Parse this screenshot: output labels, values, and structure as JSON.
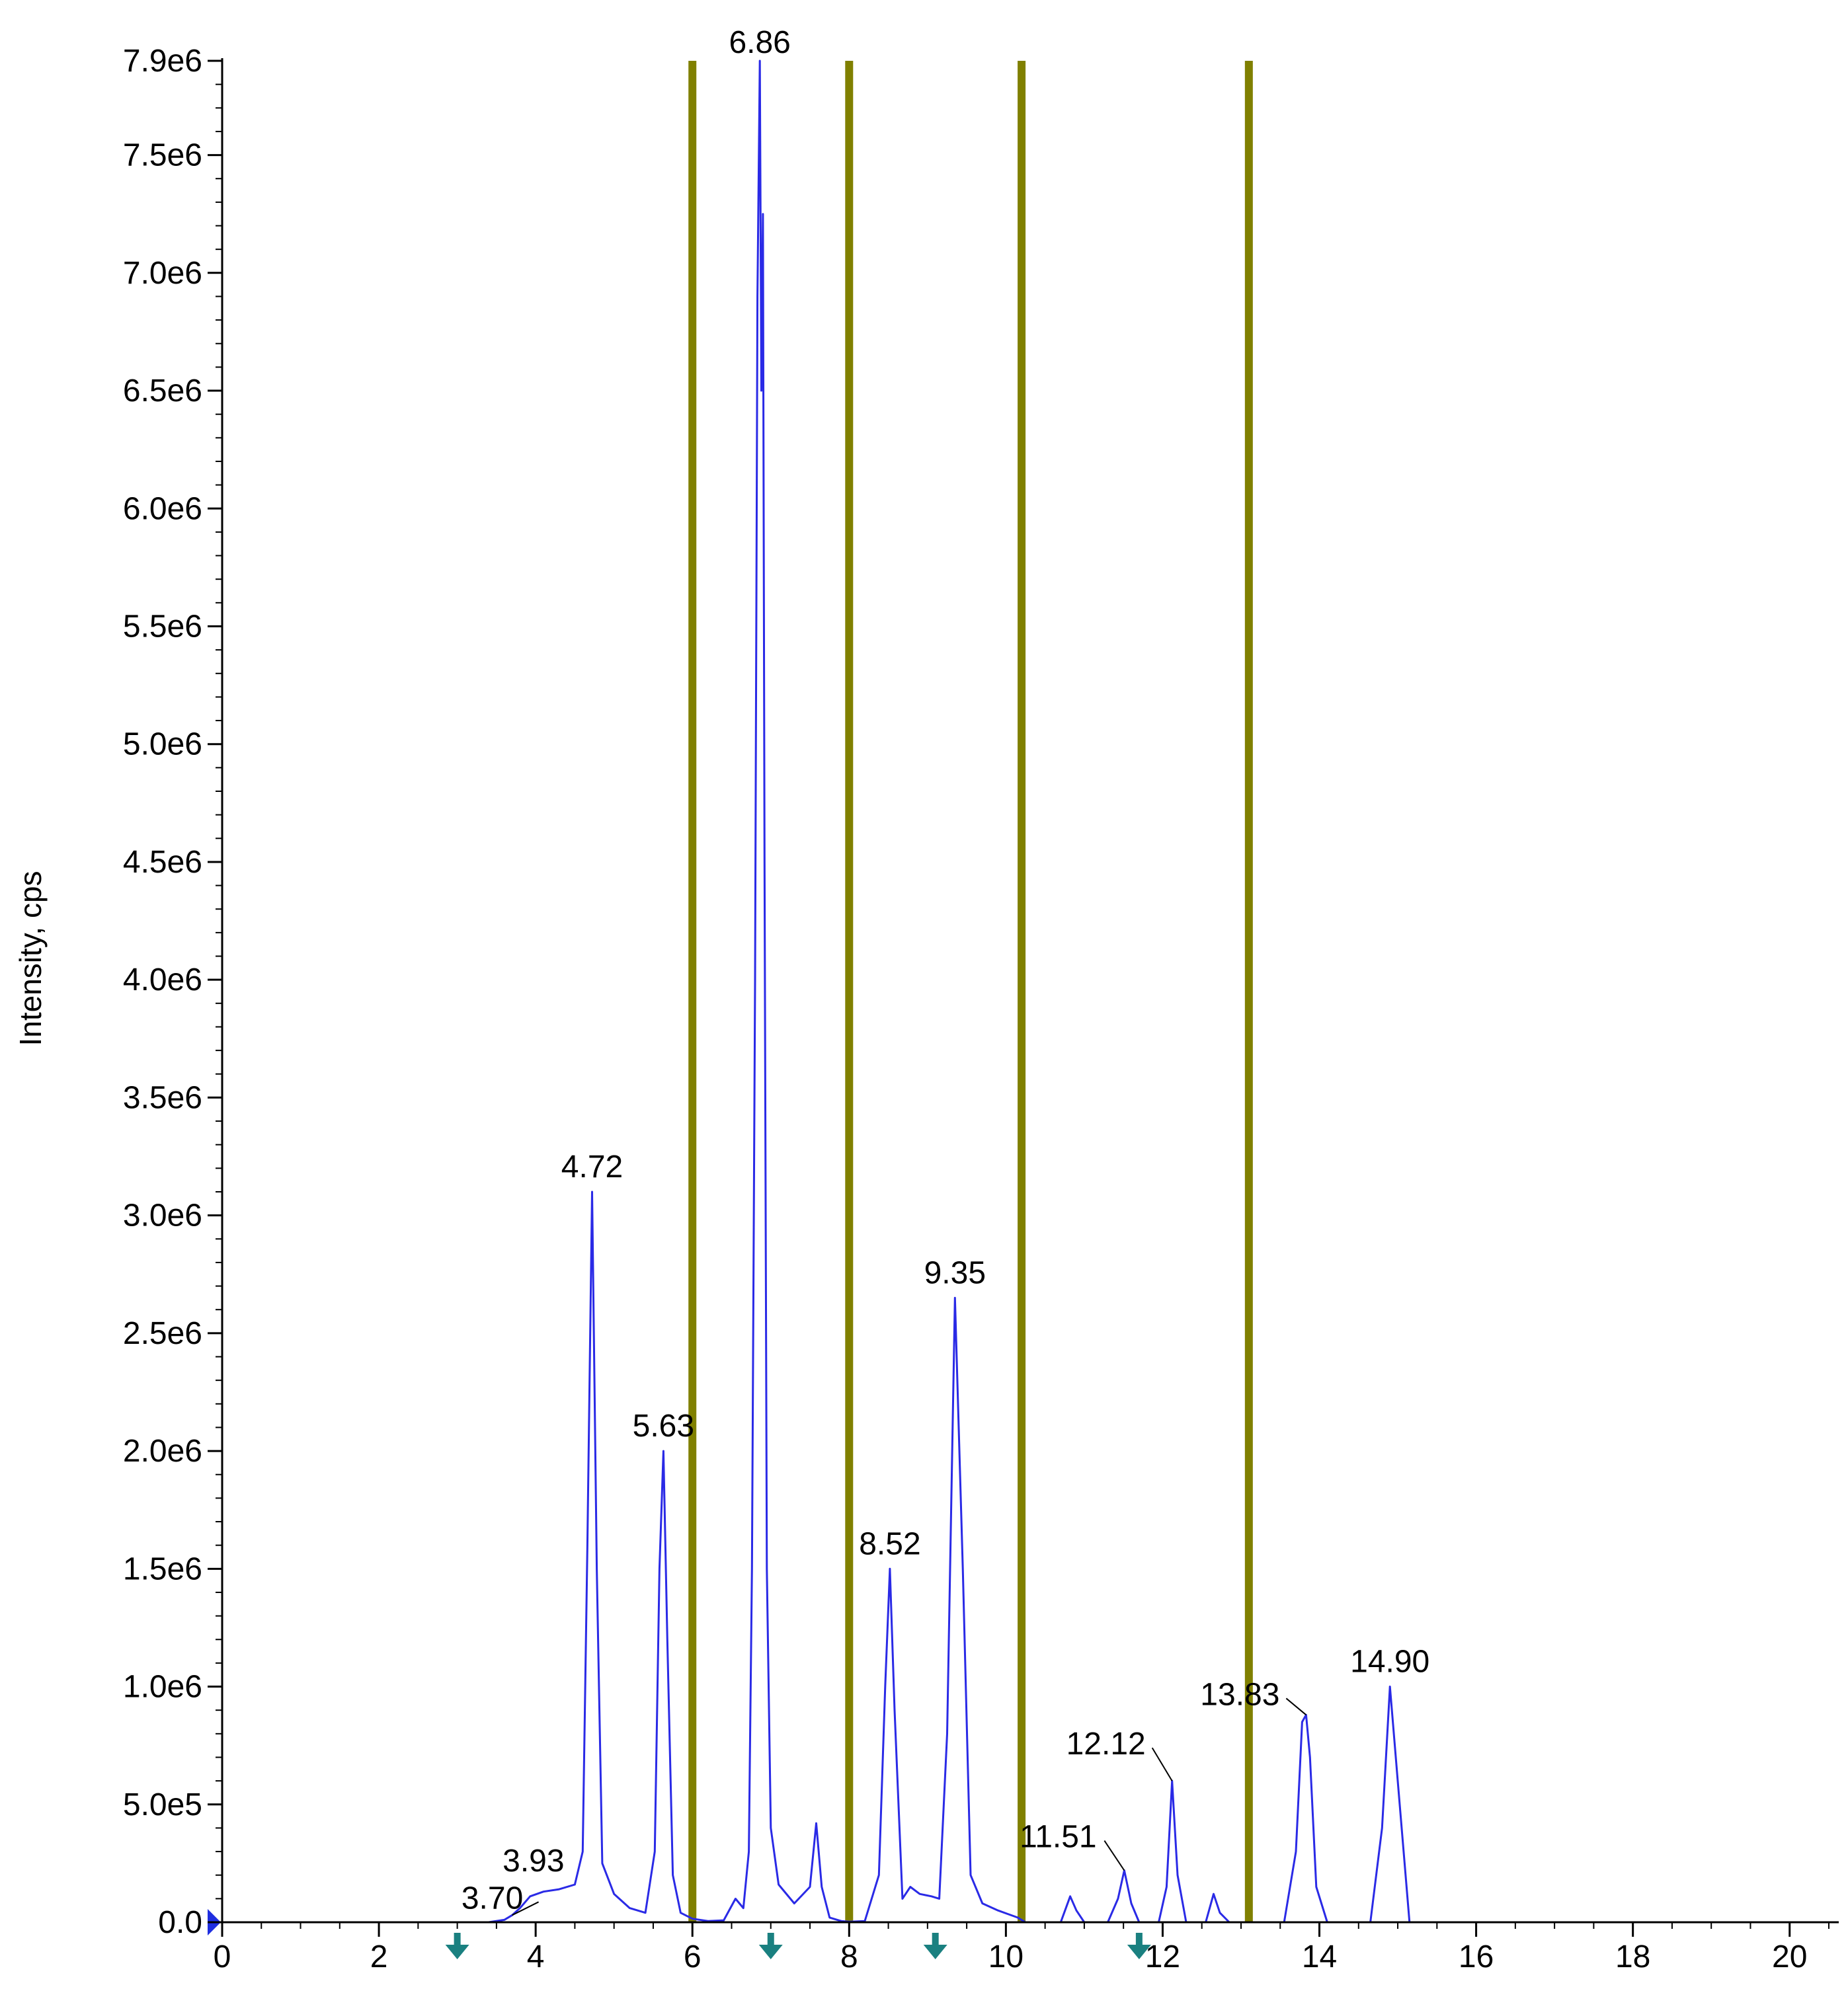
{
  "chart_data": {
    "type": "line",
    "title": "",
    "xlabel": "",
    "ylabel": "Intensity, cps",
    "xlim": [
      0,
      20.5
    ],
    "ylim": [
      0,
      7900000
    ],
    "grid": false,
    "x_ticks": [
      0,
      2,
      4,
      6,
      8,
      10,
      12,
      14,
      16,
      18,
      20
    ],
    "x_tick_labels": [
      "0",
      "2",
      "4",
      "6",
      "8",
      "10",
      "12",
      "14",
      "16",
      "18",
      "20"
    ],
    "y_ticks": [
      0,
      500000,
      1000000,
      1500000,
      2000000,
      2500000,
      3000000,
      3500000,
      4000000,
      4500000,
      5000000,
      5500000,
      6000000,
      6500000,
      7000000,
      7500000,
      7900000
    ],
    "y_tick_labels": [
      "0.0",
      "5.0e5",
      "1.0e6",
      "1.5e6",
      "2.0e6",
      "2.5e6",
      "3.0e6",
      "3.5e6",
      "4.0e6",
      "4.5e6",
      "5.0e6",
      "5.5e6",
      "6.0e6",
      "6.5e6",
      "7.0e6",
      "7.5e6",
      "7.9e6"
    ],
    "series": [
      {
        "color": "#2a2ae6",
        "x": [
          0,
          3.4,
          3.6,
          3.7,
          3.8,
          3.93,
          4.1,
          4.3,
          4.5,
          4.6,
          4.66,
          4.72,
          4.78,
          4.85,
          5.0,
          5.2,
          5.4,
          5.52,
          5.58,
          5.63,
          5.68,
          5.75,
          5.85,
          6.0,
          6.2,
          6.4,
          6.55,
          6.65,
          6.72,
          6.76,
          6.8,
          6.83,
          6.86,
          6.88,
          6.9,
          6.92,
          6.95,
          7.0,
          7.1,
          7.3,
          7.5,
          7.58,
          7.65,
          7.75,
          7.9,
          8.0,
          8.2,
          8.38,
          8.46,
          8.52,
          8.58,
          8.68,
          8.78,
          8.9,
          9.05,
          9.15,
          9.25,
          9.35,
          9.45,
          9.55,
          9.7,
          9.9,
          10.15,
          10.25,
          10.7,
          10.82,
          10.9,
          11.0,
          11.3,
          11.43,
          11.51,
          11.6,
          11.7,
          11.95,
          12.05,
          12.12,
          12.19,
          12.3,
          12.55,
          12.65,
          12.73,
          12.85,
          13.55,
          13.7,
          13.78,
          13.83,
          13.88,
          13.96,
          14.1,
          14.65,
          14.8,
          14.9,
          15.0,
          15.15,
          20.5
        ],
        "y": [
          0,
          0,
          10000,
          30000,
          60000,
          110000,
          130000,
          140000,
          160000,
          300000,
          1600000,
          3100000,
          1500000,
          250000,
          120000,
          60000,
          40000,
          300000,
          1500000,
          2000000,
          1200000,
          200000,
          40000,
          15000,
          5000,
          8000,
          100000,
          60000,
          300000,
          1500000,
          4000000,
          6900000,
          7900000,
          6500000,
          7250000,
          4500000,
          1500000,
          400000,
          160000,
          80000,
          150000,
          420000,
          150000,
          20000,
          5000,
          2000,
          5000,
          200000,
          1000000,
          1500000,
          900000,
          100000,
          150000,
          120000,
          110000,
          100000,
          800000,
          2650000,
          1500000,
          200000,
          80000,
          50000,
          20000,
          0,
          0,
          110000,
          50000,
          0,
          0,
          100000,
          220000,
          80000,
          0,
          0,
          150000,
          600000,
          200000,
          0,
          0,
          120000,
          40000,
          0,
          0,
          300000,
          850000,
          880000,
          700000,
          150000,
          0,
          0,
          400000,
          1000000,
          600000,
          0,
          0
        ]
      }
    ],
    "vertical_markers": {
      "color": "#808000",
      "x": [
        6.0,
        8.0,
        10.2,
        13.1
      ]
    },
    "peak_labels": [
      {
        "text": "3.70",
        "x": 3.7,
        "y": 30000
      },
      {
        "text": "3.93",
        "x": 3.93,
        "y": 110000
      },
      {
        "text": "4.72",
        "x": 4.72,
        "y": 3100000
      },
      {
        "text": "5.63",
        "x": 5.63,
        "y": 2000000
      },
      {
        "text": "6.86",
        "x": 6.86,
        "y": 7900000
      },
      {
        "text": "8.52",
        "x": 8.52,
        "y": 1500000
      },
      {
        "text": "9.35",
        "x": 9.35,
        "y": 2650000
      },
      {
        "text": "11.51",
        "x": 11.51,
        "y": 220000
      },
      {
        "text": "12.12",
        "x": 12.12,
        "y": 600000
      },
      {
        "text": "13.83",
        "x": 13.83,
        "y": 880000
      },
      {
        "text": "14.90",
        "x": 14.9,
        "y": 1000000
      }
    ],
    "arrow_markers": {
      "color": "#1a8080",
      "x": [
        3.0,
        7.0,
        9.1,
        11.7
      ]
    }
  }
}
